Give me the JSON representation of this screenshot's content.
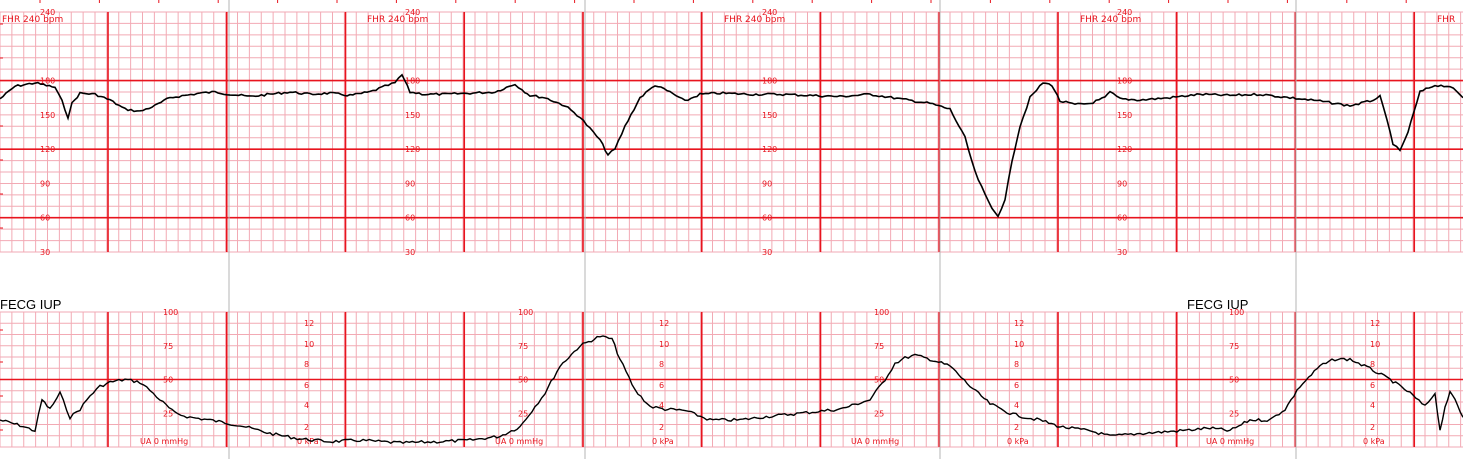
{
  "colors": {
    "grid_minor": "#f2aab4",
    "grid_major": "#e8141e",
    "trace": "#000000",
    "label": "#e8141e",
    "separator": "#b4b4b4"
  },
  "fhr_header_label": "FHR 240 bpm",
  "fhr_header_partial": "FHR",
  "uterine_mode_label": "FECG IUP",
  "ua_mmHg_label": "UA 0 mmHg",
  "ua_kPa_label": "0 kPa",
  "chart_data": [
    {
      "type": "line",
      "panel": "fetal-heart-rate",
      "ylim": [
        30,
        240
      ],
      "y_tick_labels": [
        "240",
        "180",
        "150",
        "120",
        "90",
        "60",
        "30"
      ],
      "y_tick_values": [
        240,
        180,
        150,
        120,
        90,
        60,
        30
      ],
      "x": [
        0,
        15,
        35,
        55,
        62,
        68,
        72,
        80,
        95,
        110,
        125,
        140,
        155,
        170,
        185,
        200,
        215,
        230,
        250,
        270,
        290,
        310,
        330,
        350,
        370,
        385,
        395,
        402,
        410,
        425,
        445,
        470,
        495,
        515,
        522,
        530,
        545,
        565,
        580,
        590,
        600,
        608,
        615,
        625,
        640,
        655,
        670,
        685,
        700,
        720,
        750,
        780,
        810,
        840,
        870,
        900,
        930,
        950,
        965,
        975,
        985,
        992,
        998,
        1005,
        1012,
        1020,
        1030,
        1043,
        1052,
        1060,
        1075,
        1090,
        1105,
        1110,
        1120,
        1140,
        1170,
        1200,
        1230,
        1260,
        1290,
        1320,
        1350,
        1370,
        1380,
        1387,
        1393,
        1400,
        1408,
        1420,
        1435,
        1450,
        1463
      ],
      "values": [
        164,
        175,
        178,
        174,
        162,
        148,
        160,
        169,
        168,
        163,
        155,
        153,
        158,
        165,
        167,
        169,
        170,
        168,
        166,
        168,
        170,
        168,
        169,
        167,
        170,
        175,
        178,
        185,
        170,
        168,
        168,
        169,
        170,
        177,
        172,
        167,
        165,
        158,
        148,
        138,
        128,
        115,
        120,
        140,
        165,
        176,
        170,
        162,
        168,
        169,
        168,
        168,
        167,
        166,
        168,
        164,
        160,
        155,
        130,
        100,
        80,
        68,
        62,
        75,
        110,
        140,
        165,
        178,
        176,
        162,
        159,
        160,
        165,
        170,
        164,
        163,
        165,
        168,
        167,
        168,
        165,
        162,
        158,
        162,
        166,
        145,
        125,
        118,
        135,
        170,
        176,
        175,
        165
      ]
    },
    {
      "type": "line",
      "panel": "uterine-activity",
      "ylim": [
        0,
        100
      ],
      "y_tick_labels_mmHg": [
        "100",
        "75",
        "50",
        "25"
      ],
      "y_tick_values_mmHg": [
        100,
        75,
        50,
        25
      ],
      "y_tick_labels_kPa": [
        "12",
        "10",
        "8",
        "6",
        "4",
        "2"
      ],
      "y_tick_values_kPa": [
        12,
        10,
        8,
        6,
        4,
        2
      ],
      "x": [
        0,
        20,
        35,
        42,
        50,
        60,
        70,
        80,
        90,
        100,
        110,
        125,
        140,
        150,
        160,
        175,
        190,
        210,
        240,
        270,
        300,
        330,
        360,
        400,
        440,
        470,
        500,
        520,
        535,
        545,
        560,
        580,
        600,
        612,
        620,
        635,
        650,
        665,
        685,
        710,
        740,
        760,
        800,
        840,
        870,
        885,
        895,
        905,
        915,
        930,
        950,
        970,
        990,
        1010,
        1025,
        1040,
        1060,
        1090,
        1110,
        1140,
        1180,
        1210,
        1230,
        1250,
        1270,
        1285,
        1300,
        1320,
        1335,
        1350,
        1370,
        1390,
        1410,
        1425,
        1435,
        1440,
        1445,
        1450,
        1455,
        1463
      ],
      "values": [
        20,
        16,
        12,
        35,
        28,
        40,
        22,
        28,
        38,
        45,
        48,
        50,
        48,
        42,
        35,
        25,
        22,
        20,
        16,
        10,
        6,
        4,
        5,
        3,
        4,
        5,
        8,
        15,
        30,
        40,
        60,
        75,
        82,
        80,
        65,
        42,
        30,
        28,
        27,
        20,
        20,
        22,
        25,
        28,
        35,
        50,
        62,
        66,
        68,
        65,
        60,
        45,
        32,
        25,
        22,
        20,
        15,
        12,
        8,
        10,
        12,
        14,
        12,
        20,
        20,
        28,
        45,
        60,
        65,
        65,
        58,
        50,
        40,
        30,
        40,
        12,
        30,
        40,
        35,
        22
      ]
    }
  ]
}
